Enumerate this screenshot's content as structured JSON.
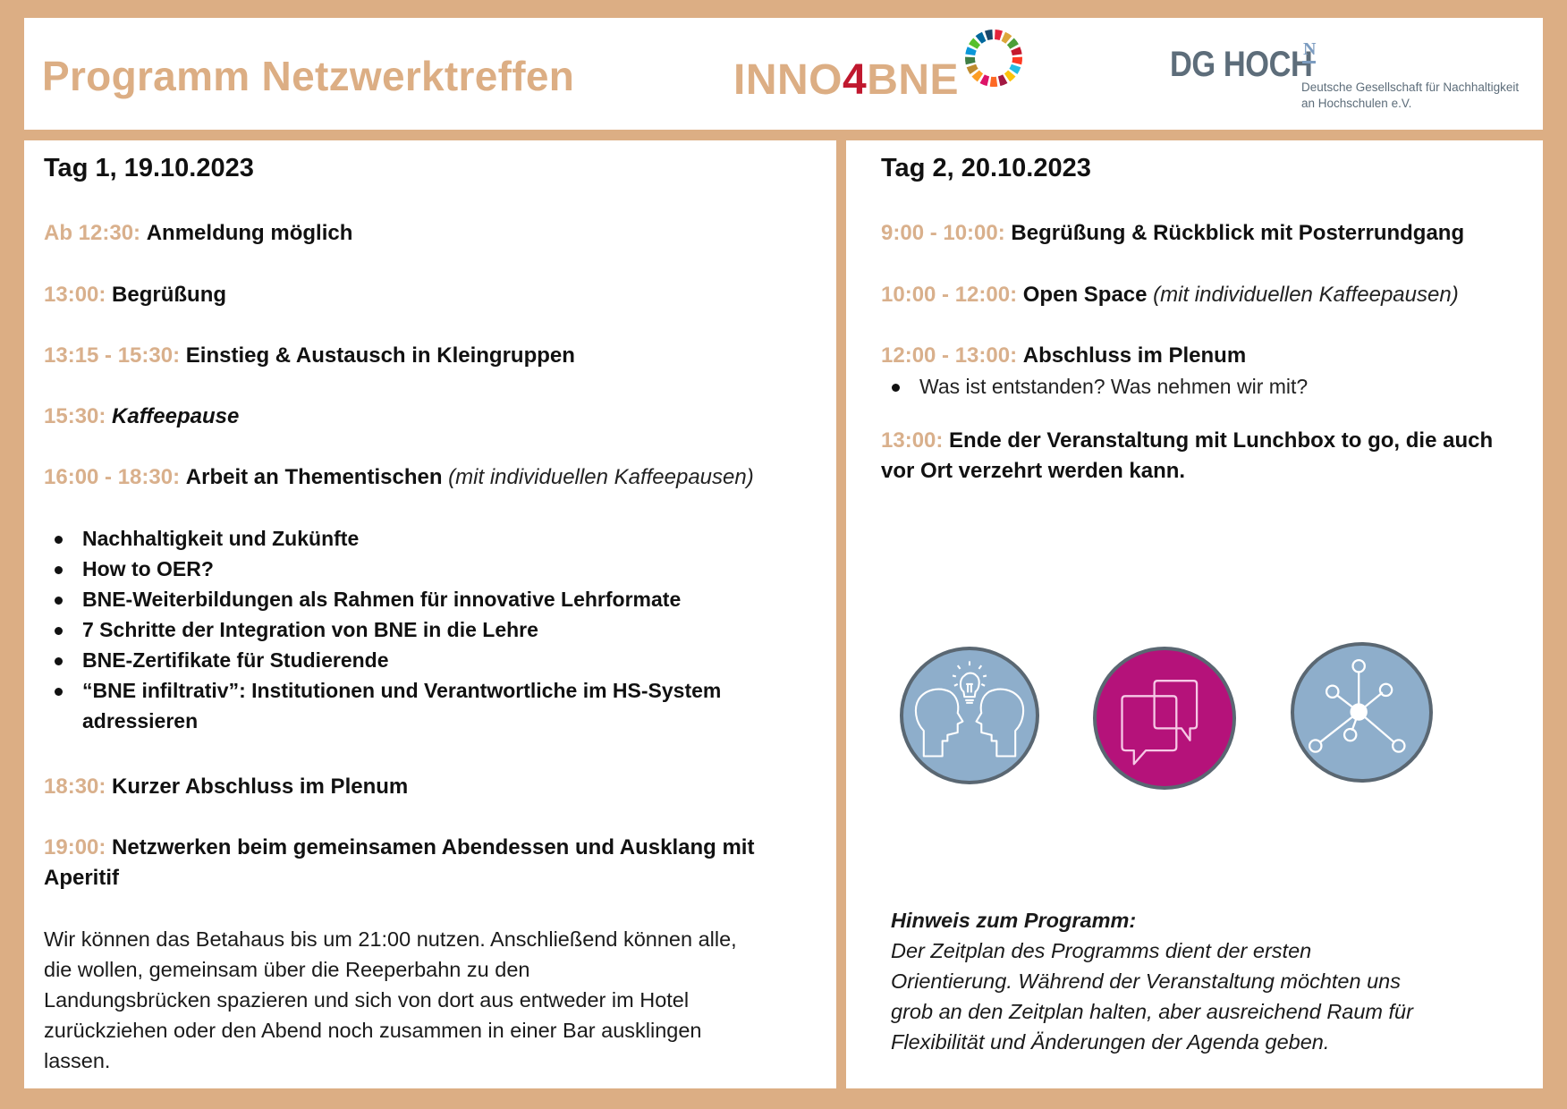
{
  "colors": {
    "frame": "#DCAE84",
    "time_accent": "#D9B08C",
    "inno4_red": "#C0182E",
    "icon_blue": "#8EAECB",
    "icon_magenta": "#B5127A",
    "dg_gray": "#5D6D7A",
    "dg_blue": "#7C9CC0"
  },
  "header": {
    "title": "Programm Netzwerktreffen",
    "logo_inno": {
      "prefix": "INNO",
      "accent": "4",
      "suffix": "BNE"
    },
    "logo_dg": {
      "main": "DG HOCH",
      "superscript": "N",
      "line1": "Deutsche Gesellschaft für Nachhaltigkeit",
      "line2": "an Hochschulen e.V."
    }
  },
  "day1": {
    "title": "Tag 1, 19.10.2023",
    "entries": [
      {
        "time": "Ab 12:30:",
        "activity": "Anmeldung möglich"
      },
      {
        "time": "13:00:",
        "activity": "Begrüßung"
      },
      {
        "time": "13:15 - 15:30:",
        "activity": "Einstieg & Austausch in Kleingruppen"
      },
      {
        "time": "15:30:",
        "activity": "Kaffeepause"
      },
      {
        "time": "16:00 - 18:30:",
        "activity": "Arbeit an Thementischen",
        "note": "(mit individuellen Kaffeepausen)"
      },
      {
        "time": "18:30:",
        "activity": "Kurzer Abschluss im Plenum"
      },
      {
        "time": "19:00:",
        "activity": "Netzwerken beim gemeinsamen Abendessen und Ausklang mit",
        "activity_line2": "Aperitif"
      }
    ],
    "topics": [
      "Nachhaltigkeit und Zukünfte",
      "How to OER?",
      "BNE-Weiterbildungen als Rahmen für innovative Lehrformate",
      "7 Schritte der Integration von BNE in die Lehre",
      "BNE-Zertifikate für Studierende",
      "“BNE infiltrativ”: Institutionen und Verantwortliche im HS-System",
      "adressieren"
    ],
    "closing_lines": [
      "Wir können das Betahaus bis um 21:00 nutzen. Anschließend können alle,",
      "die wollen, gemeinsam über die Reeperbahn zu den",
      "Landungsbrücken spazieren und sich von dort aus entweder im Hotel",
      "zurückziehen oder den Abend noch zusammen in einer Bar ausklingen",
      "lassen."
    ]
  },
  "day2": {
    "title": "Tag 2, 20.10.2023",
    "entries": [
      {
        "time": "9:00 - 10:00:",
        "activity": "Begrüßung & Rückblick mit Posterrundgang"
      },
      {
        "time": "10:00 - 12:00:",
        "activity": "Open Space",
        "note": "(mit individuellen Kaffeepausen)"
      },
      {
        "time": "12:00 - 13:00:",
        "activity": "Abschluss im Plenum"
      },
      {
        "time": "13:00:",
        "activity": "Ende der Veranstaltung mit Lunchbox to go, die auch",
        "activity_line2": "vor Ort verzehrt werden kann."
      }
    ],
    "sub_bullet": "Was ist entstanden? Was nehmen wir mit?",
    "icons": [
      "heads-lightbulb-icon",
      "speech-bubbles-icon",
      "network-icon"
    ],
    "hinweis": {
      "title": "Hinweis zum Programm:",
      "lines": [
        "Der Zeitplan des Programms dient der ersten",
        "Orientierung. Während der Veranstaltung möchten uns",
        "grob an den Zeitplan halten, aber ausreichend Raum für",
        "Flexibilität und Änderungen der Agenda geben."
      ]
    }
  }
}
